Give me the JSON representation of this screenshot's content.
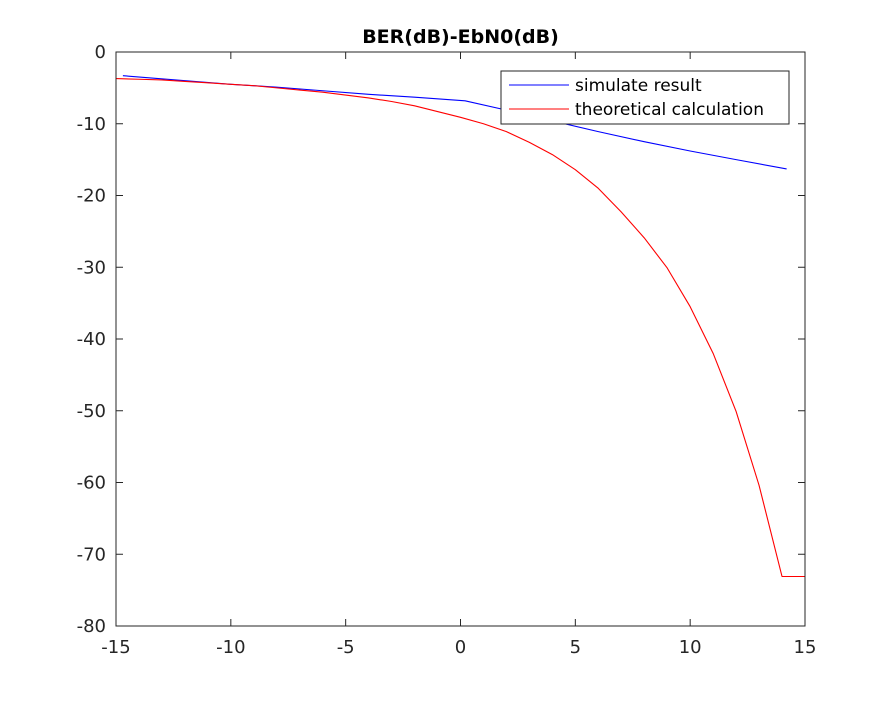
{
  "chart_data": {
    "type": "line",
    "title": "BER(dB)-EbN0(dB)",
    "xlabel": "",
    "ylabel": "",
    "xlim": [
      -15,
      15
    ],
    "ylim": [
      -80,
      0
    ],
    "xticks": [
      -15,
      -10,
      -5,
      0,
      5,
      10,
      15
    ],
    "yticks": [
      0,
      -10,
      -20,
      -30,
      -40,
      -50,
      -60,
      -70,
      -80
    ],
    "xtick_labels": [
      "-15",
      "-10",
      "-5",
      "0",
      "5",
      "10",
      "15"
    ],
    "ytick_labels": [
      "0",
      "-10",
      "-20",
      "-30",
      "-40",
      "-50",
      "-60",
      "-70",
      "-80"
    ],
    "grid": false,
    "legend_position": "top-right",
    "series": [
      {
        "name": "simulate result",
        "color": "#0000ff",
        "x": [
          -14.7,
          -12,
          -10,
          -8,
          -6,
          -4,
          -2,
          0.2,
          2,
          4,
          6,
          8,
          10,
          12,
          14.2
        ],
        "y": [
          -3.3,
          -4.0,
          -4.5,
          -4.9,
          -5.4,
          -5.9,
          -6.3,
          -6.8,
          -8.1,
          -9.6,
          -11.1,
          -12.5,
          -13.8,
          -15.0,
          -16.3
        ]
      },
      {
        "name": "theoretical calculation",
        "color": "#ff0000",
        "x": [
          -15,
          -14,
          -13,
          -12,
          -11,
          -10,
          -9,
          -8,
          -7,
          -6,
          -5,
          -4,
          -3,
          -2,
          -1,
          0,
          1,
          2,
          3,
          4,
          5,
          6,
          7,
          8,
          9,
          10,
          11,
          12,
          13,
          14,
          15
        ],
        "y": [
          -3.7,
          -3.8,
          -3.9,
          -4.1,
          -4.3,
          -4.5,
          -4.7,
          -5.0,
          -5.3,
          -5.6,
          -6.0,
          -6.4,
          -6.9,
          -7.5,
          -8.3,
          -9.1,
          -10.0,
          -11.1,
          -12.6,
          -14.3,
          -16.4,
          -19.0,
          -22.3,
          -25.9,
          -30.1,
          -35.5,
          -42.0,
          -50.1,
          -60.4,
          -73.1,
          -73.1
        ]
      }
    ]
  }
}
